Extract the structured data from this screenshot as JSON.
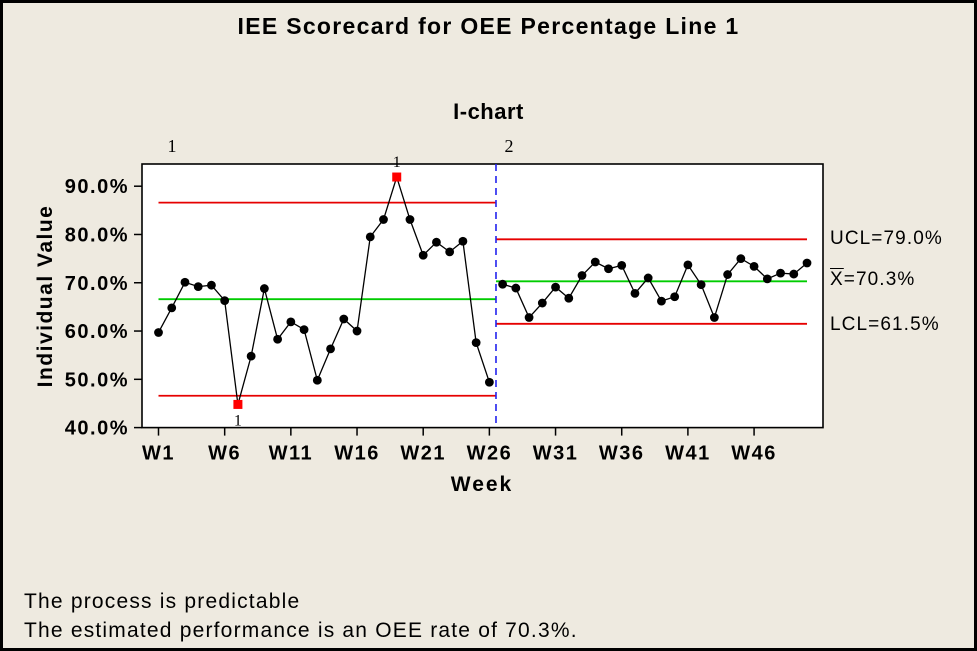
{
  "chart_data": {
    "type": "line",
    "chart_kind": "individuals-control-chart",
    "title": "IEE Scorecard for OEE Percentage Line 1",
    "subtitle": "I-chart",
    "xlabel": "Week",
    "ylabel": "Individual Value",
    "ylim": [
      40,
      94.6
    ],
    "grid": false,
    "y_ticks": [
      40,
      50,
      60,
      70,
      80,
      90
    ],
    "y_tick_labels": [
      "40.0%",
      "50.0%",
      "60.0%",
      "70.0%",
      "80.0%",
      "90.0%"
    ],
    "x_tick_weeks": [
      1,
      6,
      11,
      16,
      21,
      26,
      31,
      36,
      41,
      46
    ],
    "x_tick_labels": [
      "W1",
      "W6",
      "W11",
      "W16",
      "W21",
      "W26",
      "W31",
      "W36",
      "W41",
      "W46"
    ],
    "weeks_start": 1,
    "series": [
      {
        "name": "OEE Percentage",
        "values": [
          59.7,
          64.8,
          70.1,
          69.2,
          69.5,
          66.3,
          44.8,
          54.8,
          68.8,
          58.3,
          61.9,
          60.3,
          49.8,
          56.3,
          62.5,
          60.0,
          79.5,
          83.1,
          91.9,
          83.1,
          75.7,
          78.4,
          76.4,
          78.6,
          57.6,
          49.4,
          69.7,
          68.9,
          62.8,
          65.8,
          69.1,
          66.8,
          71.5,
          74.3,
          72.9,
          73.6,
          67.8,
          71.0,
          66.2,
          67.1,
          73.7,
          69.6,
          62.8,
          71.7,
          75.0,
          73.4,
          70.8,
          72.0,
          71.8,
          74.1
        ]
      }
    ],
    "stages": [
      {
        "label": "1",
        "start_week": 1,
        "end_week": 26,
        "ucl": 86.6,
        "center": 66.6,
        "lcl": 46.6
      },
      {
        "label": "2",
        "start_week": 27,
        "end_week": 50,
        "ucl": 79.0,
        "center": 70.3,
        "lcl": 61.5
      }
    ],
    "signals": [
      {
        "week": 7,
        "label": "1",
        "side": "below"
      },
      {
        "week": 19,
        "label": "1",
        "side": "above"
      }
    ],
    "right_labels": {
      "ucl": "UCL=79.0%",
      "mean_base": "X",
      "mean_rest": "=70.3%",
      "lcl": "LCL=61.5%"
    },
    "legend_position": "none",
    "colors": {
      "limit_line": "#E60000",
      "center_line": "#00CC00",
      "stage_boundary": "#2222EE",
      "data_line": "#000000",
      "data_point": "#000000",
      "signal_point": "#FF0000",
      "plot_background": "#FFFFFF",
      "page_background": "#EEEAE0"
    }
  },
  "footer": {
    "line1": "The process is predictable",
    "line2": "The estimated performance is an OEE rate of 70.3%."
  }
}
